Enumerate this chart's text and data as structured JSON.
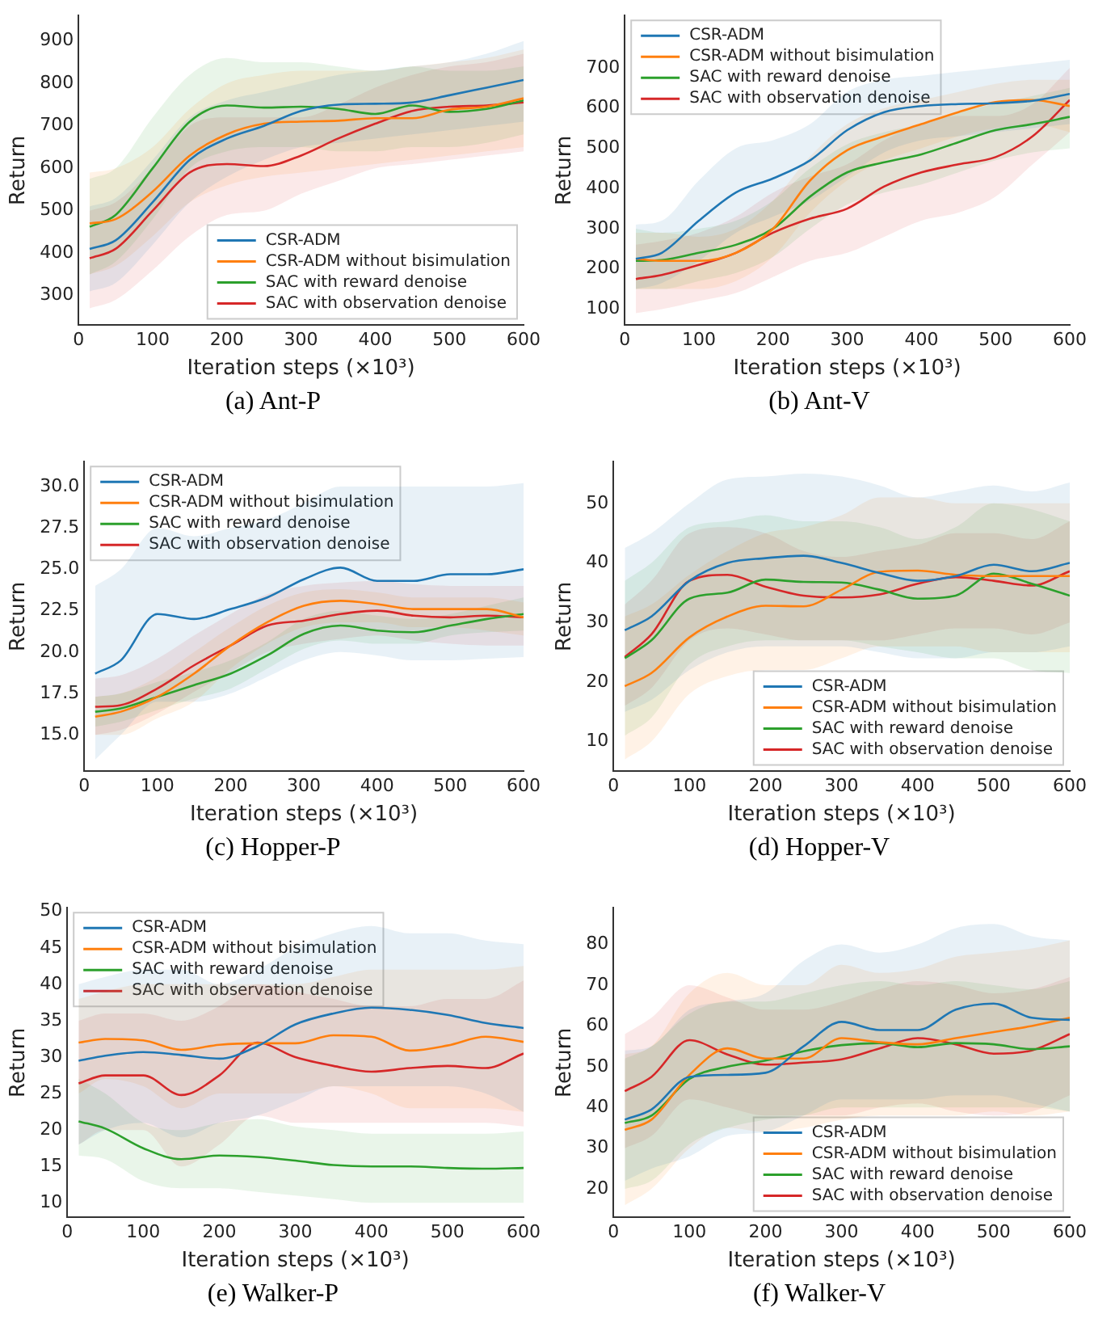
{
  "chart_data": [
    {
      "type": "line",
      "title": "(a) Ant-P",
      "xlabel": "Iteration steps (×10³)",
      "ylabel": "Return",
      "xlim": [
        0,
        600
      ],
      "xticks": [
        0,
        100,
        200,
        300,
        400,
        500,
        600
      ],
      "ylim": [
        230,
        960
      ],
      "yticks": [
        300,
        400,
        500,
        600,
        700,
        800,
        900
      ],
      "legend": "bottom right",
      "x": [
        15,
        50,
        100,
        150,
        200,
        250,
        300,
        350,
        400,
        450,
        500,
        550,
        600
      ],
      "series": [
        {
          "name": "CSR-ADM",
          "color": "#1f77b4",
          "values": [
            410,
            430,
            520,
            620,
            670,
            700,
            735,
            750,
            752,
            755,
            772,
            790,
            808
          ],
          "lower": [
            310,
            330,
            420,
            520,
            580,
            620,
            650,
            660,
            670,
            680,
            690,
            700,
            710
          ],
          "upper": [
            510,
            530,
            620,
            720,
            760,
            780,
            800,
            820,
            830,
            840,
            850,
            870,
            900
          ]
        },
        {
          "name": "CSR-ADM without bisimulation",
          "color": "#ff7f0e",
          "values": [
            470,
            480,
            545,
            630,
            680,
            705,
            710,
            712,
            718,
            718,
            738,
            745,
            765
          ],
          "lower": [
            350,
            370,
            440,
            520,
            560,
            580,
            590,
            600,
            610,
            620,
            630,
            640,
            650
          ],
          "upper": [
            590,
            600,
            650,
            740,
            800,
            820,
            830,
            830,
            830,
            840,
            850,
            860,
            880
          ]
        },
        {
          "name": "SAC with reward denoise",
          "color": "#2ca02c",
          "values": [
            462,
            490,
            600,
            710,
            748,
            743,
            745,
            740,
            728,
            748,
            733,
            740,
            760
          ],
          "lower": [
            350,
            380,
            480,
            600,
            640,
            650,
            650,
            640,
            640,
            650,
            650,
            660,
            680
          ],
          "upper": [
            575,
            600,
            720,
            820,
            860,
            850,
            850,
            840,
            830,
            840,
            830,
            830,
            840
          ]
        },
        {
          "name": "SAC with observation denoise",
          "color": "#d62728",
          "values": [
            388,
            410,
            500,
            590,
            610,
            605,
            630,
            670,
            705,
            735,
            745,
            748,
            755
          ],
          "lower": [
            270,
            290,
            360,
            440,
            490,
            500,
            540,
            570,
            600,
            610,
            620,
            630,
            640
          ],
          "upper": [
            500,
            520,
            600,
            700,
            720,
            720,
            720,
            750,
            790,
            820,
            840,
            850,
            870
          ]
        }
      ]
    },
    {
      "type": "line",
      "title": "(b) Ant-V",
      "xlabel": "Iteration steps (×10³)",
      "ylabel": "Return",
      "xlim": [
        0,
        600
      ],
      "xticks": [
        0,
        100,
        200,
        300,
        400,
        500,
        600
      ],
      "ylim": [
        60,
        830
      ],
      "yticks": [
        100,
        200,
        300,
        400,
        500,
        600,
        700
      ],
      "legend": "top left",
      "x": [
        15,
        50,
        100,
        150,
        200,
        250,
        300,
        350,
        400,
        450,
        500,
        550,
        600
      ],
      "series": [
        {
          "name": "CSR-ADM",
          "color": "#1f77b4",
          "values": [
            225,
            240,
            320,
            390,
            425,
            470,
            545,
            590,
            605,
            610,
            612,
            618,
            635
          ],
          "lower": [
            150,
            165,
            220,
            290,
            330,
            370,
            430,
            490,
            520,
            530,
            540,
            550,
            560
          ],
          "upper": [
            310,
            320,
            420,
            500,
            520,
            560,
            640,
            670,
            680,
            690,
            700,
            710,
            720
          ]
        },
        {
          "name": "CSR-ADM without bisimulation",
          "color": "#ff7f0e",
          "values": [
            225,
            220,
            220,
            240,
            300,
            420,
            495,
            530,
            560,
            590,
            615,
            620,
            605
          ],
          "lower": [
            150,
            150,
            150,
            170,
            230,
            340,
            420,
            470,
            500,
            530,
            550,
            560,
            540
          ],
          "upper": [
            290,
            290,
            280,
            300,
            370,
            480,
            560,
            600,
            620,
            640,
            660,
            670,
            670
          ]
        },
        {
          "name": "SAC with reward denoise",
          "color": "#2ca02c",
          "values": [
            220,
            222,
            240,
            260,
            300,
            380,
            440,
            465,
            485,
            515,
            545,
            560,
            578
          ],
          "lower": [
            150,
            150,
            170,
            190,
            230,
            300,
            360,
            390,
            410,
            440,
            470,
            490,
            500
          ],
          "upper": [
            300,
            290,
            300,
            320,
            370,
            450,
            510,
            540,
            560,
            590,
            610,
            630,
            650
          ]
        },
        {
          "name": "SAC with observation denoise",
          "color": "#d62728",
          "values": [
            175,
            185,
            210,
            240,
            290,
            325,
            350,
            405,
            440,
            460,
            478,
            530,
            620
          ],
          "lower": [
            90,
            100,
            120,
            140,
            180,
            220,
            240,
            280,
            320,
            340,
            380,
            460,
            540
          ],
          "upper": [
            260,
            270,
            290,
            330,
            390,
            430,
            460,
            520,
            560,
            580,
            580,
            610,
            700
          ]
        }
      ]
    },
    {
      "type": "line",
      "title": "(c) Hopper-P",
      "xlabel": "Iteration steps (×10³)",
      "ylabel": "Return",
      "xlim": [
        0,
        600
      ],
      "xticks": [
        0,
        100,
        200,
        300,
        400,
        500,
        600
      ],
      "ylim": [
        12.8,
        31.5
      ],
      "yticks": [
        {
          "value": 15,
          "label": "15.0"
        },
        17.5,
        {
          "value": 20,
          "label": "20.0"
        },
        22.5,
        {
          "value": 25,
          "label": "25.0"
        },
        27.5,
        {
          "value": 30,
          "label": "30.0"
        }
      ],
      "legend": "top left",
      "x": [
        15,
        50,
        100,
        150,
        200,
        250,
        300,
        350,
        400,
        450,
        500,
        550,
        600
      ],
      "series": [
        {
          "name": "CSR-ADM",
          "color": "#1f77b4",
          "values": [
            18.7,
            19.5,
            22.3,
            22.0,
            22.6,
            23.3,
            24.4,
            25.1,
            24.3,
            24.3,
            24.7,
            24.7,
            25.0
          ],
          "lower": [
            13.5,
            15,
            17.0,
            17.0,
            17.5,
            18.5,
            19.5,
            20.0,
            19.8,
            19.5,
            19.5,
            19.6,
            19.7
          ],
          "upper": [
            24,
            25,
            27.5,
            27,
            27.5,
            28,
            29,
            30,
            30,
            30,
            30,
            30,
            30.2
          ]
        },
        {
          "name": "CSR-ADM without bisimulation",
          "color": "#ff7f0e",
          "values": [
            16.1,
            16.4,
            17.3,
            18.7,
            20.4,
            21.8,
            22.8,
            23.1,
            22.9,
            22.6,
            22.6,
            22.6,
            22.1
          ],
          "lower": [
            15,
            15,
            16,
            17,
            19,
            20.5,
            21.5,
            21.8,
            21.8,
            21.5,
            21.5,
            21.3,
            21.0
          ],
          "upper": [
            17.3,
            17.5,
            18.5,
            20,
            21.5,
            22.8,
            23.6,
            23.8,
            23.6,
            23.3,
            23.3,
            23.3,
            23
          ]
        },
        {
          "name": "SAC with reward denoise",
          "color": "#2ca02c",
          "values": [
            16.4,
            16.6,
            17.3,
            18.0,
            18.7,
            19.8,
            21.1,
            21.6,
            21.3,
            21.2,
            21.6,
            22.0,
            22.3
          ],
          "lower": [
            15.5,
            15.8,
            16.5,
            17.2,
            17.8,
            19,
            20.2,
            20.7,
            20.5,
            20.5,
            21,
            21.2,
            21.3
          ],
          "upper": [
            17.3,
            17.5,
            18.2,
            18.8,
            19.5,
            20.6,
            22,
            22.5,
            22.2,
            22,
            22.3,
            22.8,
            23.3
          ]
        },
        {
          "name": "SAC with observation denoise",
          "color": "#d62728",
          "values": [
            16.7,
            16.8,
            17.8,
            19.2,
            20.4,
            21.6,
            21.9,
            22.3,
            22.5,
            22.2,
            22.1,
            22.2,
            22.1
          ],
          "lower": [
            15,
            15.3,
            16.3,
            17.6,
            18.8,
            20,
            20.5,
            20.8,
            21,
            20.7,
            20.5,
            20.4,
            20.4
          ],
          "upper": [
            18.4,
            18.6,
            19.6,
            21,
            22.3,
            23.5,
            24,
            24.2,
            24.3,
            24.1,
            24,
            24,
            24
          ]
        }
      ]
    },
    {
      "type": "line",
      "title": "(d) Hopper-V",
      "xlabel": "Iteration steps (×10³)",
      "ylabel": "Return",
      "xlim": [
        0,
        600
      ],
      "xticks": [
        0,
        100,
        200,
        300,
        400,
        500,
        600
      ],
      "ylim": [
        5,
        57
      ],
      "yticks": [
        10,
        20,
        30,
        40,
        50
      ],
      "legend": "bottom right",
      "x": [
        15,
        50,
        100,
        150,
        200,
        250,
        300,
        350,
        400,
        450,
        500,
        550,
        600
      ],
      "series": [
        {
          "name": "CSR-ADM",
          "color": "#1f77b4",
          "values": [
            28.7,
            31,
            37,
            40,
            40.8,
            41.2,
            40,
            38.3,
            37,
            37.8,
            39.7,
            38.6,
            40
          ],
          "lower": [
            15,
            17,
            22,
            25,
            26,
            26,
            26,
            25,
            24,
            24,
            25,
            25,
            26
          ],
          "upper": [
            42.5,
            45,
            50,
            54,
            54.5,
            55,
            54.5,
            53,
            51,
            52,
            53,
            52,
            53.5
          ]
        },
        {
          "name": "CSR-ADM without bisimulation",
          "color": "#ff7f0e",
          "values": [
            19.3,
            21.5,
            27.5,
            31,
            32.8,
            32.7,
            35.5,
            38.5,
            38.7,
            38,
            37.8,
            37.8,
            37.8
          ],
          "lower": [
            7,
            10,
            18,
            21,
            22,
            22,
            24,
            26,
            26,
            26,
            25,
            25,
            25
          ],
          "upper": [
            31,
            33,
            38,
            42,
            45,
            46,
            48,
            51,
            51,
            50,
            50,
            50,
            50
          ]
        },
        {
          "name": "SAC with reward denoise",
          "color": "#2ca02c",
          "values": [
            24,
            27,
            34,
            35,
            37.2,
            36.8,
            36.7,
            35.5,
            34,
            34.5,
            38.2,
            36.5,
            34.5
          ],
          "lower": [
            11,
            14,
            23,
            26,
            27,
            27,
            27,
            26,
            25,
            24,
            24,
            22,
            21.5
          ],
          "upper": [
            37,
            40,
            46,
            47,
            48,
            47,
            47,
            46,
            44,
            46,
            50,
            49,
            47
          ]
        },
        {
          "name": "SAC with observation denoise",
          "color": "#d62728",
          "values": [
            24.2,
            28,
            37,
            38,
            36,
            34.5,
            34.2,
            34.7,
            36.5,
            37.6,
            37,
            36.2,
            38.6
          ],
          "lower": [
            16,
            19,
            27,
            29,
            28,
            27,
            27,
            27,
            28,
            29,
            29,
            28,
            30
          ],
          "upper": [
            33,
            37,
            45,
            46,
            45,
            42,
            41,
            42,
            43,
            45,
            45,
            44,
            47
          ]
        }
      ]
    },
    {
      "type": "line",
      "title": "(e) Walker-P",
      "xlabel": "Iteration steps (×10³)",
      "ylabel": "Return",
      "xlim": [
        0,
        600
      ],
      "xticks": [
        0,
        100,
        200,
        300,
        400,
        500,
        600
      ],
      "ylim": [
        8,
        50.5
      ],
      "yticks": [
        10,
        15,
        20,
        25,
        30,
        35,
        40,
        45,
        50
      ],
      "legend": "top left",
      "x": [
        15,
        50,
        100,
        150,
        200,
        250,
        300,
        350,
        400,
        450,
        500,
        550,
        600
      ],
      "series": [
        {
          "name": "CSR-ADM",
          "color": "#1f77b4",
          "values": [
            29.5,
            30.2,
            30.7,
            30.3,
            29.8,
            31.5,
            34.5,
            36,
            36.8,
            36.5,
            35.8,
            34.7,
            34
          ],
          "lower": [
            18,
            20,
            21,
            19,
            21,
            22,
            24,
            26,
            26,
            26,
            26,
            25,
            22.5
          ],
          "upper": [
            40,
            41,
            42,
            42,
            40,
            42,
            45,
            47,
            48,
            47,
            47,
            46,
            45.5
          ]
        },
        {
          "name": "CSR-ADM without bisimulation",
          "color": "#ff7f0e",
          "values": [
            32,
            32.5,
            32.3,
            31,
            31.7,
            31.9,
            31.9,
            33,
            32.8,
            30.9,
            31.6,
            32.8,
            32.1
          ],
          "lower": [
            25,
            27,
            26,
            23,
            25,
            25,
            25,
            26,
            25,
            23,
            23,
            23,
            22.5
          ],
          "upper": [
            38,
            39,
            40,
            40,
            40,
            40,
            40,
            41,
            42,
            42,
            42,
            42,
            42.5
          ]
        },
        {
          "name": "SAC with reward denoise",
          "color": "#2ca02c",
          "values": [
            21.2,
            20.2,
            17.5,
            16,
            16.5,
            16.3,
            15.8,
            15.2,
            15,
            15,
            14.8,
            14.7,
            14.8
          ],
          "lower": [
            16.5,
            16,
            13,
            12,
            12,
            11.5,
            11,
            10.5,
            10,
            10,
            10,
            10,
            10
          ],
          "upper": [
            27,
            25,
            21,
            20,
            21,
            21.5,
            20.5,
            20,
            19.5,
            19.5,
            19.5,
            19.5,
            19.8
          ]
        },
        {
          "name": "SAC with observation denoise",
          "color": "#d62728",
          "values": [
            26.4,
            27.5,
            27.5,
            24.8,
            27.5,
            32,
            30,
            28.8,
            28,
            28.5,
            28.8,
            28.5,
            30.5
          ],
          "lower": [
            18,
            20,
            20,
            15,
            18,
            22,
            21,
            21,
            21,
            21,
            21,
            21,
            20.5
          ],
          "upper": [
            35,
            36,
            36,
            35,
            37,
            40,
            39,
            38,
            37,
            37,
            38,
            38,
            40.5
          ]
        }
      ]
    },
    {
      "type": "line",
      "title": "(f) Walker-V",
      "xlabel": "Iteration steps (×10³)",
      "ylabel": "Return",
      "xlim": [
        0,
        600
      ],
      "xticks": [
        0,
        100,
        200,
        300,
        400,
        500,
        600
      ],
      "ylim": [
        13,
        89
      ],
      "yticks": [
        20,
        30,
        40,
        50,
        60,
        70,
        80
      ],
      "legend": "bottom right",
      "x": [
        15,
        50,
        100,
        150,
        200,
        250,
        300,
        350,
        400,
        450,
        500,
        550,
        600
      ],
      "series": [
        {
          "name": "CSR-ADM",
          "color": "#1f77b4",
          "values": [
            37,
            39.5,
            47.5,
            48,
            48.5,
            55,
            61,
            59,
            59,
            64,
            65.5,
            62,
            61.5
          ],
          "lower": [
            22,
            25,
            28,
            33,
            34,
            38,
            42,
            42,
            42,
            43,
            43,
            41,
            39
          ],
          "upper": [
            54,
            55,
            64,
            66,
            68,
            76,
            80,
            78,
            80,
            84,
            85,
            82,
            81
          ]
        },
        {
          "name": "CSR-ADM without bisimulation",
          "color": "#ff7f0e",
          "values": [
            34.5,
            37,
            48,
            54.5,
            52,
            52,
            57,
            56,
            55.5,
            57,
            58.5,
            60,
            62
          ],
          "lower": [
            16,
            20,
            30,
            35,
            34,
            35,
            37,
            38,
            38,
            38,
            39,
            38,
            39
          ],
          "upper": [
            53,
            55,
            68,
            73,
            70,
            70,
            75,
            73,
            74,
            77,
            78,
            79,
            81
          ]
        },
        {
          "name": "SAC with reward denoise",
          "color": "#2ca02c",
          "values": [
            36.2,
            38,
            47,
            50,
            51.5,
            53.8,
            55.3,
            55.8,
            54.8,
            55.8,
            55.5,
            54.3,
            55
          ],
          "lower": [
            20,
            22,
            31,
            35,
            37,
            38,
            40,
            40,
            40,
            40,
            40,
            40,
            39
          ],
          "upper": [
            52,
            55,
            63,
            66,
            66,
            68,
            70,
            71,
            70,
            71,
            70,
            69,
            71
          ]
        },
        {
          "name": "SAC with observation denoise",
          "color": "#d62728",
          "values": [
            44,
            47.5,
            56.5,
            53,
            50.5,
            51,
            51.8,
            54.5,
            57,
            55.5,
            53.2,
            54,
            58
          ],
          "lower": [
            30,
            33,
            42,
            40,
            38,
            38,
            38,
            40,
            41,
            39,
            38,
            39,
            43
          ],
          "upper": [
            58,
            62,
            70,
            67,
            64,
            64,
            66,
            69,
            71,
            70,
            68,
            69,
            72
          ]
        }
      ]
    }
  ]
}
